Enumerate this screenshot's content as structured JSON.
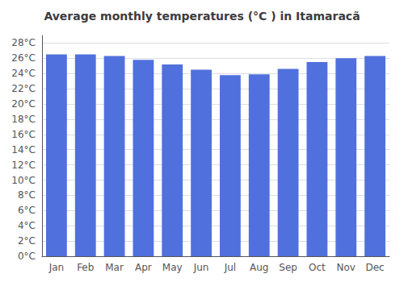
{
  "chart_data": {
    "type": "bar",
    "title": "Average monthly temperatures (°C ) in Itamaracã",
    "categories": [
      "Jan",
      "Feb",
      "Mar",
      "Apr",
      "May",
      "Jun",
      "Jul",
      "Aug",
      "Sep",
      "Oct",
      "Nov",
      "Dec"
    ],
    "values": [
      26.5,
      26.5,
      26.3,
      25.8,
      25.2,
      24.5,
      23.8,
      23.9,
      24.6,
      25.5,
      26.0,
      26.3
    ],
    "ylim": [
      0,
      29
    ],
    "yticks": [
      {
        "value": 0,
        "label": "0°C"
      },
      {
        "value": 2,
        "label": "2°C"
      },
      {
        "value": 4,
        "label": "4°C"
      },
      {
        "value": 6,
        "label": "6°C"
      },
      {
        "value": 8,
        "label": "8°C"
      },
      {
        "value": 10,
        "label": "10°C"
      },
      {
        "value": 12,
        "label": "12°C"
      },
      {
        "value": 14,
        "label": "14°C"
      },
      {
        "value": 16,
        "label": "16°C"
      },
      {
        "value": 18,
        "label": "18°C"
      },
      {
        "value": 20,
        "label": "20°C"
      },
      {
        "value": 22,
        "label": "22°C"
      },
      {
        "value": 24,
        "label": "24°C"
      },
      {
        "value": 26,
        "label": "26°C"
      },
      {
        "value": 28,
        "label": "28°C"
      }
    ],
    "grid": true
  }
}
